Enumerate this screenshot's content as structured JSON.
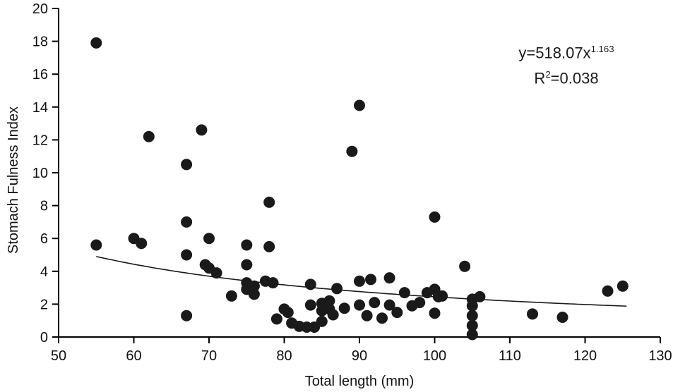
{
  "chart_data": {
    "type": "scatter",
    "title": "",
    "xlabel": "Total length (mm)",
    "ylabel": "Stomach Fulness Index",
    "xlim": [
      50,
      130
    ],
    "ylim": [
      0,
      20
    ],
    "xticks": [
      50,
      60,
      70,
      80,
      90,
      100,
      110,
      120,
      130
    ],
    "yticks": [
      0,
      2,
      4,
      6,
      8,
      10,
      12,
      14,
      16,
      18,
      20
    ],
    "grid": false,
    "legend": false,
    "marker_color": "#1a1a1a",
    "axis_color": "#000000",
    "line_color": "#1a1a1a",
    "equation": {
      "base": "y=518.07x",
      "exponent": "1.163"
    },
    "r_squared": {
      "base": "R",
      "sup": "2",
      "rest": "=0.038"
    },
    "trendline": {
      "type": "power",
      "a": 518.07,
      "b": -1.163,
      "x_start": 55,
      "x_end": 125.5
    },
    "points": [
      [
        55,
        17.9
      ],
      [
        55,
        5.6
      ],
      [
        60,
        6.0
      ],
      [
        61,
        5.7
      ],
      [
        62,
        12.2
      ],
      [
        67,
        10.5
      ],
      [
        67,
        7.0
      ],
      [
        67,
        5.0
      ],
      [
        67,
        1.3
      ],
      [
        69,
        12.6
      ],
      [
        69.5,
        4.4
      ],
      [
        70,
        6.0
      ],
      [
        70,
        4.2
      ],
      [
        71,
        3.9
      ],
      [
        73,
        2.5
      ],
      [
        75,
        5.6
      ],
      [
        75,
        4.4
      ],
      [
        75,
        3.3
      ],
      [
        75,
        2.9
      ],
      [
        76,
        3.1
      ],
      [
        76,
        2.6
      ],
      [
        78,
        8.2
      ],
      [
        78,
        5.5
      ],
      [
        77.5,
        3.4
      ],
      [
        78.5,
        3.3
      ],
      [
        79,
        1.1
      ],
      [
        80,
        1.7
      ],
      [
        80.5,
        1.5
      ],
      [
        81,
        0.85
      ],
      [
        82,
        0.65
      ],
      [
        83,
        0.6
      ],
      [
        83.5,
        3.2
      ],
      [
        83.5,
        1.95
      ],
      [
        84,
        0.6
      ],
      [
        85,
        1.6
      ],
      [
        85,
        2.05
      ],
      [
        85,
        0.95
      ],
      [
        86,
        2.2
      ],
      [
        86,
        1.7
      ],
      [
        86.5,
        1.35
      ],
      [
        87,
        2.95
      ],
      [
        88,
        1.75
      ],
      [
        89,
        11.3
      ],
      [
        90,
        14.1
      ],
      [
        90,
        3.4
      ],
      [
        90,
        1.95
      ],
      [
        91,
        1.3
      ],
      [
        91.5,
        3.5
      ],
      [
        92,
        2.1
      ],
      [
        93,
        1.15
      ],
      [
        94,
        3.6
      ],
      [
        94,
        1.95
      ],
      [
        95,
        1.5
      ],
      [
        96,
        2.7
      ],
      [
        97,
        1.9
      ],
      [
        98,
        2.1
      ],
      [
        99,
        2.7
      ],
      [
        100,
        7.3
      ],
      [
        100,
        2.9
      ],
      [
        100.5,
        2.45
      ],
      [
        100,
        1.45
      ],
      [
        101,
        2.5
      ],
      [
        104,
        4.3
      ],
      [
        105,
        2.3
      ],
      [
        105,
        1.9
      ],
      [
        105,
        1.3
      ],
      [
        105,
        0.7
      ],
      [
        105,
        0.15
      ],
      [
        106,
        2.45
      ],
      [
        113,
        1.4
      ],
      [
        117,
        1.2
      ],
      [
        123,
        2.8
      ],
      [
        125,
        3.1
      ]
    ]
  }
}
